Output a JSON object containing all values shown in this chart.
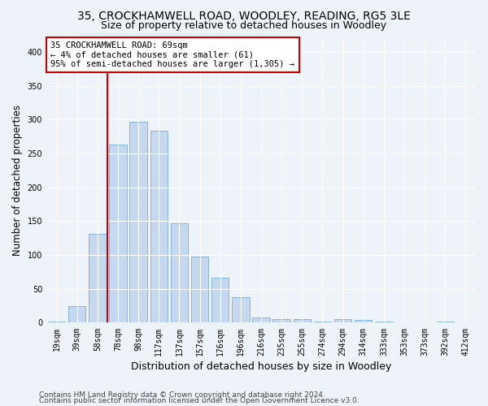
{
  "title1": "35, CROCKHAMWELL ROAD, WOODLEY, READING, RG5 3LE",
  "title2": "Size of property relative to detached houses in Woodley",
  "xlabel": "Distribution of detached houses by size in Woodley",
  "ylabel": "Number of detached properties",
  "categories": [
    "19sqm",
    "39sqm",
    "58sqm",
    "78sqm",
    "98sqm",
    "117sqm",
    "137sqm",
    "157sqm",
    "176sqm",
    "196sqm",
    "216sqm",
    "235sqm",
    "255sqm",
    "274sqm",
    "294sqm",
    "314sqm",
    "333sqm",
    "353sqm",
    "373sqm",
    "392sqm",
    "412sqm"
  ],
  "values": [
    2,
    24,
    131,
    263,
    297,
    284,
    147,
    98,
    67,
    38,
    8,
    5,
    5,
    2,
    5,
    4,
    2,
    1,
    0,
    2,
    0
  ],
  "bar_color": "#c5d8f0",
  "bar_edge_color": "#7aadd4",
  "vline_color": "#cc0000",
  "vline_bar_index": 2,
  "annotation_text": "35 CROCKHAMWELL ROAD: 69sqm\n← 4% of detached houses are smaller (61)\n95% of semi-detached houses are larger (1,305) →",
  "annotation_box_facecolor": "#ffffff",
  "annotation_box_edgecolor": "#cc0000",
  "ylim": [
    0,
    420
  ],
  "yticks": [
    0,
    50,
    100,
    150,
    200,
    250,
    300,
    350,
    400
  ],
  "footer1": "Contains HM Land Registry data © Crown copyright and database right 2024.",
  "footer2": "Contains public sector information licensed under the Open Government Licence v3.0.",
  "bg_color": "#eef2f9",
  "grid_color": "#ffffff",
  "title_fontsize": 10,
  "subtitle_fontsize": 9,
  "tick_fontsize": 7,
  "ylabel_fontsize": 8.5,
  "xlabel_fontsize": 9,
  "annotation_fontsize": 7.5,
  "footer_fontsize": 6.5
}
